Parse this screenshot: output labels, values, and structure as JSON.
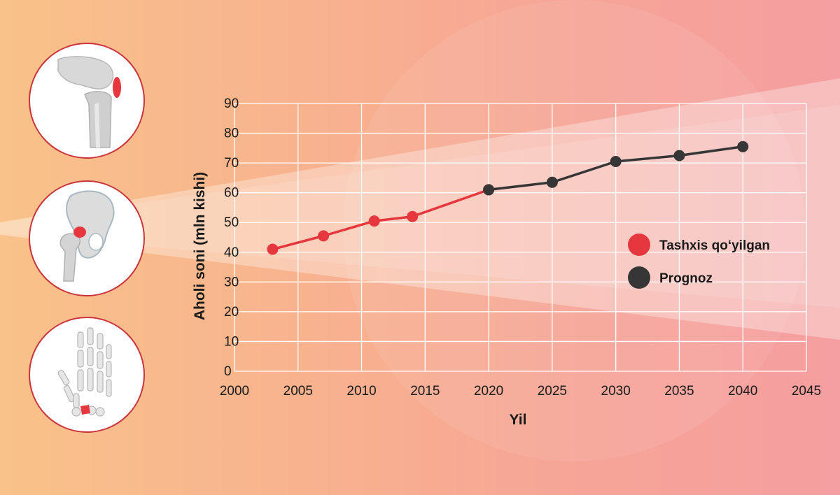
{
  "colors": {
    "diagnosed": "#e5373d",
    "forecast": "#363636",
    "accent_border": "#c9353a"
  },
  "icons": [
    "knee-joint-icon",
    "hip-joint-icon",
    "hand-joint-icon"
  ],
  "chart_data": {
    "type": "line",
    "xlabel": "Yil",
    "ylabel": "Aholi soni (mln kishi)",
    "xlim": [
      2000,
      2045
    ],
    "ylim": [
      0,
      90
    ],
    "x_ticks": [
      2000,
      2005,
      2010,
      2015,
      2020,
      2025,
      2030,
      2035,
      2040,
      2045
    ],
    "y_ticks": [
      0,
      10,
      20,
      30,
      40,
      50,
      60,
      70,
      80,
      90
    ],
    "grid": true,
    "legend_position": "right",
    "series": [
      {
        "name": "Tashxis qo‘yilgan",
        "color": "#e5373d",
        "points": [
          [
            2003,
            41
          ],
          [
            2007,
            45.5
          ],
          [
            2011,
            50.5
          ],
          [
            2014,
            52
          ],
          [
            2020,
            61
          ]
        ]
      },
      {
        "name": "Prognoz",
        "color": "#363636",
        "points": [
          [
            2020,
            61
          ],
          [
            2025,
            63.5
          ],
          [
            2030,
            70.5
          ],
          [
            2035,
            72.5
          ],
          [
            2040,
            75.5
          ]
        ]
      }
    ]
  }
}
